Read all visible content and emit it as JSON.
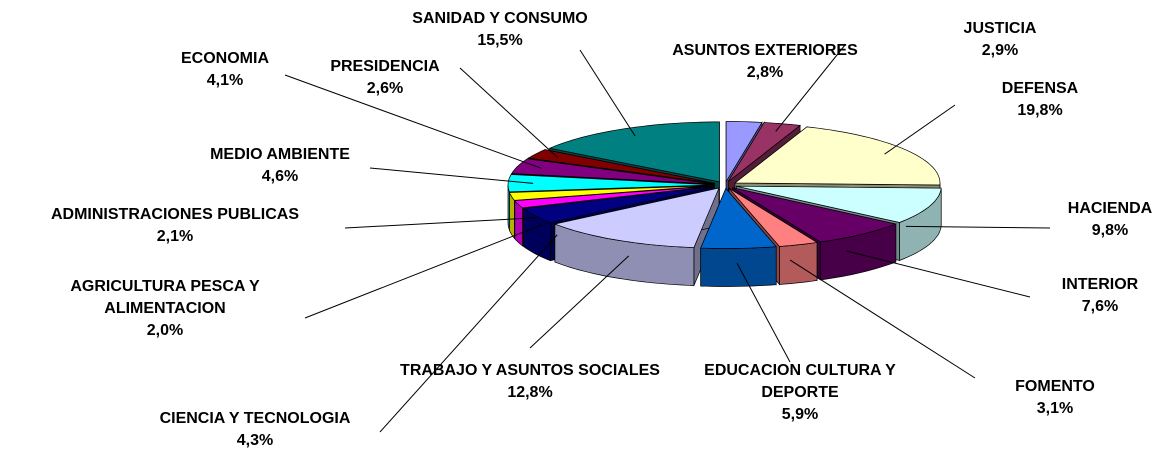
{
  "chart_data": {
    "type": "pie",
    "categories": [
      "ASUNTOS EXTERIORES",
      "JUSTICIA",
      "DEFENSA",
      "HACIENDA",
      "INTERIOR",
      "FOMENTO",
      "EDUCACION CULTURA Y DEPORTE",
      "TRABAJO Y ASUNTOS SOCIALES",
      "CIENCIA Y TECNOLOGIA",
      "AGRICULTURA PESCA Y ALIMENTACION",
      "ADMINISTRACIONES PUBLICAS",
      "MEDIO AMBIENTE",
      "ECONOMIA",
      "PRESIDENCIA",
      "SANIDAD Y CONSUMO"
    ],
    "values": [
      2.8,
      2.9,
      19.8,
      9.8,
      7.6,
      3.1,
      5.9,
      12.8,
      4.3,
      2.0,
      2.1,
      4.6,
      4.1,
      2.6,
      15.5
    ],
    "value_labels": [
      "2,8%",
      "2,9%",
      "19,8%",
      "9,8%",
      "7,6%",
      "3,1%",
      "5,9%",
      "12,8%",
      "4,3%",
      "2,0%",
      "2,1%",
      "4,6%",
      "4,1%",
      "2,6%",
      "15,5%"
    ],
    "colors": [
      "#9999ff",
      "#993366",
      "#ffffcc",
      "#ccffff",
      "#660066",
      "#ff8080",
      "#0066cc",
      "#ccccff",
      "#000080",
      "#ff00ff",
      "#ffff00",
      "#00ffff",
      "#800080",
      "#800000",
      "#008080"
    ],
    "three_d": true,
    "exploded": true
  }
}
